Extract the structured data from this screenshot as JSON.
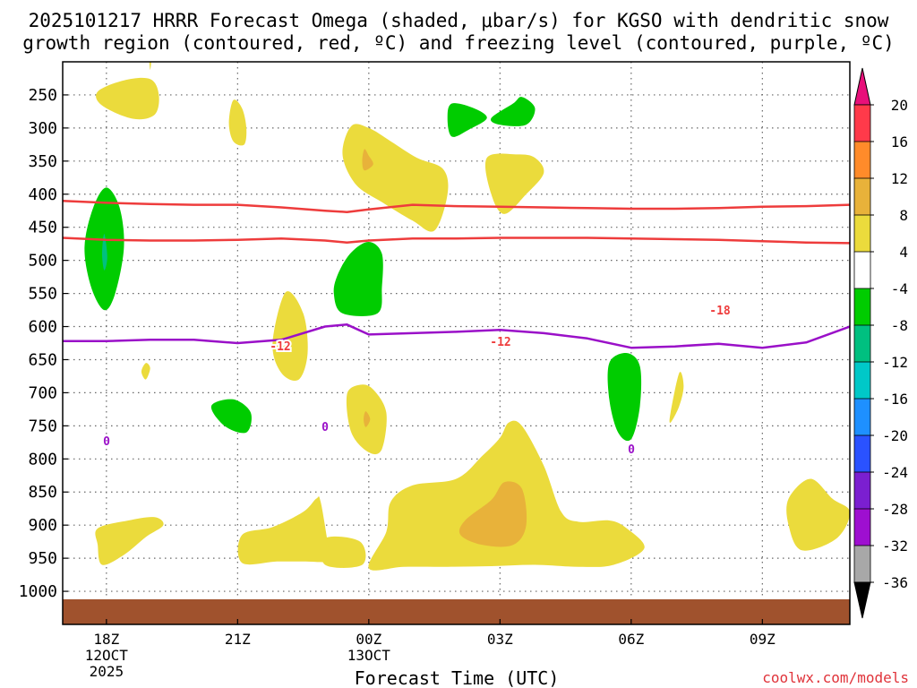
{
  "chart_data": {
    "type": "heatmap",
    "title_line1": "2025101217 HRRR Forecast Omega (shaded, μbar/s) for KGSO with dendritic snow",
    "title_line2": "growth region (contoured, red, ºC) and freezing level (contoured, purple, ºC)",
    "xlabel": "Forecast Time (UTC)",
    "credit": "coolwx.com/models",
    "x_ticks": [
      {
        "h": 1,
        "label": "18Z",
        "sub1": "12OCT",
        "sub2": "2025"
      },
      {
        "h": 4,
        "label": "21Z",
        "sub1": "",
        "sub2": ""
      },
      {
        "h": 7,
        "label": "00Z",
        "sub1": "13OCT",
        "sub2": ""
      },
      {
        "h": 10,
        "label": "03Z",
        "sub1": "",
        "sub2": ""
      },
      {
        "h": 13,
        "label": "06Z",
        "sub1": "",
        "sub2": ""
      },
      {
        "h": 16,
        "label": "09Z",
        "sub1": "",
        "sub2": ""
      }
    ],
    "xlim": [
      0,
      18
    ],
    "y_levels": [
      "250",
      "300",
      "350",
      "400",
      "450",
      "500",
      "550",
      "600",
      "650",
      "700",
      "750",
      "800",
      "850",
      "900",
      "950",
      "1000"
    ],
    "ylim": [
      200,
      1050
    ],
    "colorbar": {
      "labels": [
        "20",
        "16",
        "12",
        "8",
        "4",
        "-4",
        "-8",
        "-12",
        "-16",
        "-20",
        "-24",
        "-28",
        "-32",
        "-36"
      ],
      "colors": [
        "#ff3a4a",
        "#ff8b2a",
        "#e8b23a",
        "#ebdb3c",
        "#ffffff",
        "#00cc00",
        "#00c080",
        "#00c8c8",
        "#1e90ff",
        "#2a52ff",
        "#7b1fd0",
        "#9e0fd0",
        "#a8a8a8"
      ],
      "top_color": "#e8107a",
      "bottom_color": "#000000"
    },
    "contour_labels": {
      "neg12": "-12",
      "neg18": "-18",
      "zero": "0"
    },
    "contours": [
      {
        "name": "minus12",
        "color": "#ee3c3c",
        "points": [
          [
            0,
            466
          ],
          [
            1,
            469
          ],
          [
            2,
            470
          ],
          [
            3,
            470
          ],
          [
            4,
            469
          ],
          [
            5,
            467
          ],
          [
            6,
            470
          ],
          [
            6.5,
            473
          ],
          [
            7,
            470
          ],
          [
            8,
            467
          ],
          [
            9,
            467
          ],
          [
            10,
            466
          ],
          [
            11,
            466
          ],
          [
            12,
            466
          ],
          [
            13,
            467
          ],
          [
            14,
            468
          ],
          [
            15,
            469
          ],
          [
            16,
            471
          ],
          [
            17,
            473
          ],
          [
            18,
            474
          ]
        ]
      },
      {
        "name": "minus18",
        "color": "#ee3c3c",
        "points": [
          [
            0,
            410
          ],
          [
            1,
            413
          ],
          [
            2,
            415
          ],
          [
            3,
            416
          ],
          [
            4,
            416
          ],
          [
            5,
            420
          ],
          [
            6,
            425
          ],
          [
            6.5,
            427
          ],
          [
            7,
            423
          ],
          [
            8,
            416
          ],
          [
            9,
            418
          ],
          [
            10,
            419
          ],
          [
            11,
            420
          ],
          [
            12,
            421
          ],
          [
            13,
            422
          ],
          [
            14,
            422
          ],
          [
            15,
            421
          ],
          [
            16,
            419
          ],
          [
            17,
            418
          ],
          [
            18,
            416
          ]
        ]
      },
      {
        "name": "freezing",
        "color": "#9a10c8",
        "points": [
          [
            0,
            622
          ],
          [
            1,
            622
          ],
          [
            2,
            620
          ],
          [
            3,
            620
          ],
          [
            4,
            625
          ],
          [
            5,
            620
          ],
          [
            6,
            600
          ],
          [
            6.5,
            597
          ],
          [
            7,
            612
          ],
          [
            8,
            610
          ],
          [
            9,
            608
          ],
          [
            10,
            605
          ],
          [
            11,
            610
          ],
          [
            12,
            618
          ],
          [
            13,
            632
          ],
          [
            14,
            630
          ],
          [
            15,
            626
          ],
          [
            16,
            632
          ],
          [
            17,
            624
          ],
          [
            18,
            600
          ]
        ]
      }
    ],
    "regions": [
      {
        "color": "#ebdb3c",
        "points": [
          [
            0.8,
            245
          ],
          [
            1.4,
            228
          ],
          [
            2.0,
            226
          ],
          [
            2.2,
            250
          ],
          [
            2.1,
            280
          ],
          [
            1.6,
            286
          ],
          [
            0.9,
            266
          ]
        ]
      },
      {
        "color": "#ebdb3c",
        "points": [
          [
            1.97,
            185
          ],
          [
            2.03,
            190
          ],
          [
            2.0,
            212
          ]
        ]
      },
      {
        "color": "#ebdb3c",
        "points": [
          [
            3.9,
            258
          ],
          [
            4.1,
            270
          ],
          [
            4.2,
            300
          ],
          [
            4.15,
            325
          ],
          [
            3.9,
            320
          ],
          [
            3.8,
            292
          ]
        ]
      },
      {
        "color": "#00cc00",
        "points": [
          [
            8.9,
            263
          ],
          [
            9.4,
            270
          ],
          [
            9.7,
            285
          ],
          [
            9.3,
            302
          ],
          [
            8.9,
            313
          ],
          [
            8.8,
            285
          ]
        ]
      },
      {
        "color": "#00cc00",
        "points": [
          [
            9.8,
            285
          ],
          [
            10.3,
            263
          ],
          [
            10.5,
            253
          ],
          [
            10.8,
            270
          ],
          [
            10.6,
            295
          ],
          [
            10.0,
            295
          ]
        ]
      },
      {
        "color": "#ebdb3c",
        "points": [
          [
            6.6,
            297
          ],
          [
            7.0,
            300
          ],
          [
            7.5,
            320
          ],
          [
            8.1,
            345
          ],
          [
            8.7,
            362
          ],
          [
            8.8,
            400
          ],
          [
            8.5,
            455
          ],
          [
            8.0,
            440
          ],
          [
            7.3,
            412
          ],
          [
            6.7,
            385
          ],
          [
            6.4,
            340
          ]
        ]
      },
      {
        "color": "#e8b23a",
        "points": [
          [
            6.9,
            332
          ],
          [
            7.0,
            342
          ],
          [
            7.1,
            355
          ],
          [
            6.9,
            364
          ],
          [
            6.85,
            350
          ]
        ]
      },
      {
        "color": "#ebdb3c",
        "points": [
          [
            9.7,
            345
          ],
          [
            10.4,
            340
          ],
          [
            10.8,
            345
          ],
          [
            11.0,
            368
          ],
          [
            10.6,
            400
          ],
          [
            10.1,
            430
          ],
          [
            9.8,
            400
          ]
        ]
      },
      {
        "color": "#00cc00",
        "points": [
          [
            1.0,
            390
          ],
          [
            1.3,
            420
          ],
          [
            1.4,
            480
          ],
          [
            1.2,
            550
          ],
          [
            0.95,
            575
          ],
          [
            0.65,
            540
          ],
          [
            0.5,
            480
          ],
          [
            0.7,
            420
          ]
        ]
      },
      {
        "color": "#00c080",
        "points": [
          [
            0.95,
            460
          ],
          [
            1.02,
            495
          ],
          [
            0.95,
            515
          ],
          [
            0.9,
            490
          ]
        ]
      },
      {
        "color": "#00cc00",
        "points": [
          [
            6.3,
            520
          ],
          [
            6.6,
            488
          ],
          [
            7.0,
            472
          ],
          [
            7.3,
            490
          ],
          [
            7.3,
            540
          ],
          [
            7.2,
            580
          ],
          [
            6.4,
            580
          ],
          [
            6.2,
            550
          ]
        ]
      },
      {
        "color": "#ebdb3c",
        "points": [
          [
            5.1,
            548
          ],
          [
            5.5,
            580
          ],
          [
            5.6,
            640
          ],
          [
            5.4,
            680
          ],
          [
            5.0,
            670
          ],
          [
            4.8,
            625
          ]
        ]
      },
      {
        "color": "#ebdb3c",
        "points": [
          [
            1.9,
            655
          ],
          [
            2.0,
            663
          ],
          [
            1.9,
            680
          ],
          [
            1.8,
            668
          ]
        ]
      },
      {
        "color": "#00cc00",
        "points": [
          [
            3.4,
            720
          ],
          [
            3.9,
            710
          ],
          [
            4.3,
            730
          ],
          [
            4.2,
            760
          ],
          [
            3.7,
            750
          ]
        ]
      },
      {
        "color": "#ebdb3c",
        "points": [
          [
            6.5,
            703
          ],
          [
            6.8,
            688
          ],
          [
            7.1,
            695
          ],
          [
            7.4,
            730
          ],
          [
            7.3,
            785
          ],
          [
            7.0,
            790
          ],
          [
            6.6,
            760
          ]
        ]
      },
      {
        "color": "#e8b23a",
        "points": [
          [
            6.93,
            728
          ],
          [
            7.03,
            740
          ],
          [
            6.93,
            752
          ],
          [
            6.88,
            740
          ]
        ]
      },
      {
        "color": "#00cc00",
        "points": [
          [
            12.5,
            655
          ],
          [
            12.9,
            640
          ],
          [
            13.2,
            660
          ],
          [
            13.2,
            720
          ],
          [
            13.0,
            770
          ],
          [
            12.7,
            760
          ],
          [
            12.5,
            710
          ]
        ]
      },
      {
        "color": "#ebdb3c",
        "points": [
          [
            13.9,
            730
          ],
          [
            14.1,
            670
          ],
          [
            14.2,
            690
          ],
          [
            14.1,
            720
          ],
          [
            13.9,
            745
          ]
        ]
      },
      {
        "color": "#ebdb3c",
        "points": [
          [
            0.8,
            905
          ],
          [
            1.5,
            893
          ],
          [
            2.1,
            888
          ],
          [
            2.3,
            900
          ],
          [
            1.9,
            918
          ],
          [
            1.4,
            945
          ],
          [
            0.9,
            960
          ],
          [
            0.8,
            930
          ]
        ]
      },
      {
        "color": "#ebdb3c",
        "points": [
          [
            6.0,
            920
          ],
          [
            6.8,
            925
          ],
          [
            6.85,
            960
          ],
          [
            6.0,
            960
          ]
        ]
      },
      {
        "color": "#ebdb3c",
        "points": [
          [
            4.1,
            915
          ],
          [
            4.8,
            903
          ],
          [
            5.5,
            880
          ],
          [
            5.8,
            860
          ],
          [
            5.9,
            865
          ],
          [
            6.1,
            940
          ],
          [
            6.2,
            955
          ],
          [
            5.5,
            955
          ],
          [
            4.9,
            955
          ],
          [
            4.1,
            957
          ]
        ]
      },
      {
        "color": "#ebdb3c",
        "points": [
          [
            7.0,
            965
          ],
          [
            7.4,
            910
          ],
          [
            7.5,
            865
          ],
          [
            8.0,
            840
          ],
          [
            9.0,
            830
          ],
          [
            9.6,
            795
          ],
          [
            10.0,
            768
          ],
          [
            10.2,
            745
          ],
          [
            10.5,
            750
          ],
          [
            11.0,
            810
          ],
          [
            11.4,
            880
          ],
          [
            11.8,
            895
          ],
          [
            12.5,
            893
          ],
          [
            12.9,
            905
          ],
          [
            13.3,
            935
          ],
          [
            12.6,
            960
          ],
          [
            11.8,
            963
          ],
          [
            10.8,
            960
          ],
          [
            9.8,
            962
          ],
          [
            8.8,
            963
          ],
          [
            7.8,
            963
          ]
        ]
      },
      {
        "color": "#e8b23a",
        "points": [
          [
            9.2,
            893
          ],
          [
            9.8,
            862
          ],
          [
            10.1,
            835
          ],
          [
            10.5,
            845
          ],
          [
            10.6,
            900
          ],
          [
            10.3,
            930
          ],
          [
            9.6,
            930
          ],
          [
            9.1,
            915
          ]
        ]
      },
      {
        "color": "#ebdb3c",
        "points": [
          [
            16.6,
            860
          ],
          [
            17.1,
            830
          ],
          [
            17.6,
            860
          ],
          [
            18.0,
            880
          ],
          [
            17.7,
            920
          ],
          [
            16.9,
            938
          ],
          [
            16.6,
            900
          ]
        ]
      }
    ]
  }
}
